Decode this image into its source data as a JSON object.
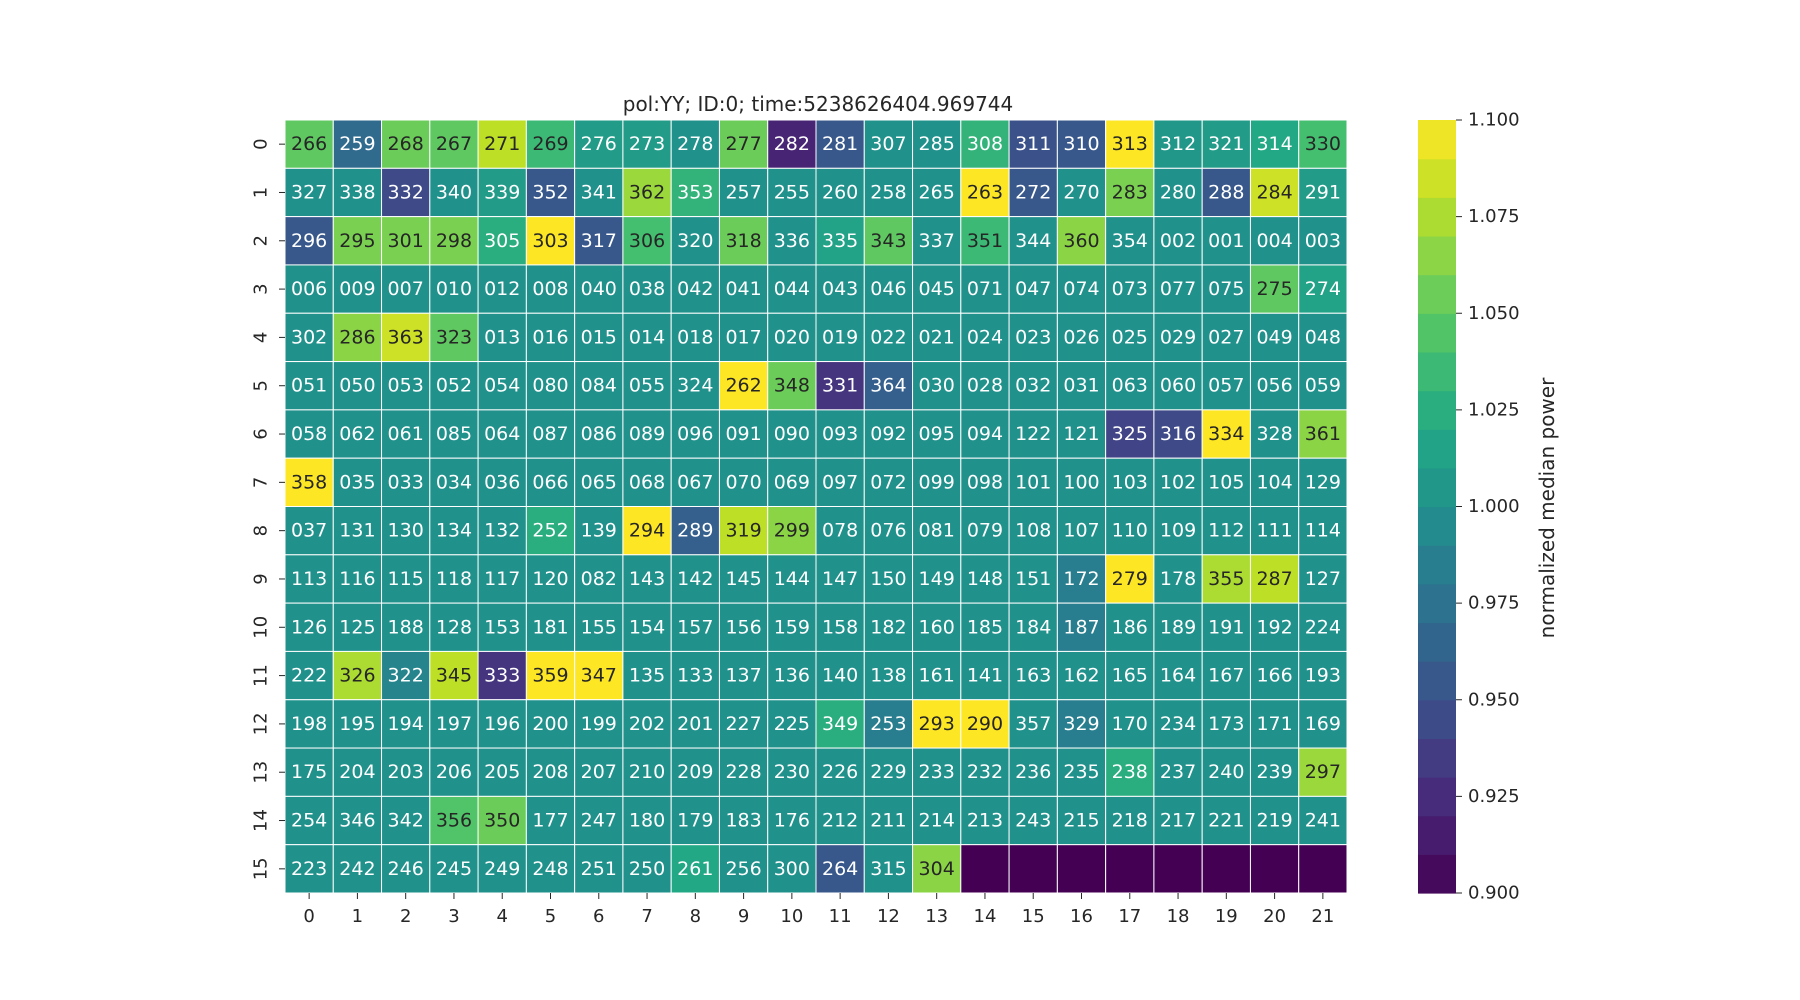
{
  "chart_data": {
    "type": "heatmap",
    "title": "pol:YY; ID:0; time:5238626404.969744",
    "x_categories": [
      "0",
      "1",
      "2",
      "3",
      "4",
      "5",
      "6",
      "7",
      "8",
      "9",
      "10",
      "11",
      "12",
      "13",
      "14",
      "15",
      "16",
      "17",
      "18",
      "19",
      "20",
      "21"
    ],
    "y_categories": [
      "0",
      "1",
      "2",
      "3",
      "4",
      "5",
      "6",
      "7",
      "8",
      "9",
      "10",
      "11",
      "12",
      "13",
      "14",
      "15"
    ],
    "annotations": [
      [
        "266",
        "259",
        "268",
        "267",
        "271",
        "269",
        "276",
        "273",
        "278",
        "277",
        "282",
        "281",
        "307",
        "285",
        "308",
        "311",
        "310",
        "313",
        "312",
        "321",
        "314",
        "330"
      ],
      [
        "327",
        "338",
        "332",
        "340",
        "339",
        "352",
        "341",
        "362",
        "353",
        "257",
        "255",
        "260",
        "258",
        "265",
        "263",
        "272",
        "270",
        "283",
        "280",
        "288",
        "284",
        "291"
      ],
      [
        "296",
        "295",
        "301",
        "298",
        "305",
        "303",
        "317",
        "306",
        "320",
        "318",
        "336",
        "335",
        "343",
        "337",
        "351",
        "344",
        "360",
        "354",
        "002",
        "001",
        "004",
        "003"
      ],
      [
        "006",
        "009",
        "007",
        "010",
        "012",
        "008",
        "040",
        "038",
        "042",
        "041",
        "044",
        "043",
        "046",
        "045",
        "071",
        "047",
        "074",
        "073",
        "077",
        "075",
        "275",
        "274"
      ],
      [
        "302",
        "286",
        "363",
        "323",
        "013",
        "016",
        "015",
        "014",
        "018",
        "017",
        "020",
        "019",
        "022",
        "021",
        "024",
        "023",
        "026",
        "025",
        "029",
        "027",
        "049",
        "048"
      ],
      [
        "051",
        "050",
        "053",
        "052",
        "054",
        "080",
        "084",
        "055",
        "324",
        "262",
        "348",
        "331",
        "364",
        "030",
        "028",
        "032",
        "031",
        "063",
        "060",
        "057",
        "056",
        "059"
      ],
      [
        "058",
        "062",
        "061",
        "085",
        "064",
        "087",
        "086",
        "089",
        "096",
        "091",
        "090",
        "093",
        "092",
        "095",
        "094",
        "122",
        "121",
        "325",
        "316",
        "334",
        "328",
        "361"
      ],
      [
        "358",
        "035",
        "033",
        "034",
        "036",
        "066",
        "065",
        "068",
        "067",
        "070",
        "069",
        "097",
        "072",
        "099",
        "098",
        "101",
        "100",
        "103",
        "102",
        "105",
        "104",
        "129"
      ],
      [
        "037",
        "131",
        "130",
        "134",
        "132",
        "252",
        "139",
        "294",
        "289",
        "319",
        "299",
        "078",
        "076",
        "081",
        "079",
        "108",
        "107",
        "110",
        "109",
        "112",
        "111",
        "114"
      ],
      [
        "113",
        "116",
        "115",
        "118",
        "117",
        "120",
        "082",
        "143",
        "142",
        "145",
        "144",
        "147",
        "150",
        "149",
        "148",
        "151",
        "172",
        "279",
        "178",
        "355",
        "287",
        "127"
      ],
      [
        "126",
        "125",
        "188",
        "128",
        "153",
        "181",
        "155",
        "154",
        "157",
        "156",
        "159",
        "158",
        "182",
        "160",
        "185",
        "184",
        "187",
        "186",
        "189",
        "191",
        "192",
        "224"
      ],
      [
        "222",
        "326",
        "322",
        "345",
        "333",
        "359",
        "347",
        "135",
        "133",
        "137",
        "136",
        "140",
        "138",
        "161",
        "141",
        "163",
        "162",
        "165",
        "164",
        "167",
        "166",
        "193"
      ],
      [
        "198",
        "195",
        "194",
        "197",
        "196",
        "200",
        "199",
        "202",
        "201",
        "227",
        "225",
        "349",
        "253",
        "293",
        "290",
        "357",
        "329",
        "170",
        "234",
        "173",
        "171",
        "169"
      ],
      [
        "175",
        "204",
        "203",
        "206",
        "205",
        "208",
        "207",
        "210",
        "209",
        "228",
        "230",
        "226",
        "229",
        "233",
        "232",
        "236",
        "235",
        "238",
        "237",
        "240",
        "239",
        "297"
      ],
      [
        "254",
        "346",
        "342",
        "356",
        "350",
        "177",
        "247",
        "180",
        "179",
        "183",
        "176",
        "212",
        "211",
        "214",
        "213",
        "243",
        "215",
        "218",
        "217",
        "221",
        "219",
        "241"
      ],
      [
        "223",
        "242",
        "246",
        "245",
        "249",
        "248",
        "251",
        "250",
        "261",
        "256",
        "300",
        "264",
        "315",
        "304",
        "",
        "",
        "",
        "",
        "",
        "",
        "",
        ""
      ]
    ],
    "values": [
      [
        1.05,
        0.97,
        1.055,
        1.05,
        1.08,
        1.035,
        1.01,
        1.01,
        1.0,
        1.055,
        0.92,
        0.955,
        1.0,
        1.0,
        1.03,
        0.95,
        0.955,
        1.1,
        1.005,
        1.01,
        1.02,
        1.04
      ],
      [
        1.0,
        1.0,
        0.945,
        1.0,
        1.01,
        0.955,
        1.0,
        1.07,
        1.03,
        1.0,
        1.0,
        1.0,
        1.0,
        1.0,
        1.1,
        0.955,
        1.0,
        1.06,
        1.0,
        0.955,
        1.085,
        1.01
      ],
      [
        0.955,
        1.06,
        1.06,
        1.06,
        1.025,
        1.1,
        0.955,
        1.04,
        1.0,
        1.055,
        1.0,
        1.015,
        1.05,
        1.0,
        1.035,
        1.0,
        1.065,
        1.0,
        1.0,
        1.0,
        1.0,
        1.0
      ],
      [
        1.0,
        1.0,
        1.0,
        1.0,
        1.0,
        1.0,
        1.0,
        1.0,
        1.0,
        1.0,
        1.0,
        1.0,
        1.0,
        1.0,
        1.0,
        1.0,
        1.0,
        1.0,
        1.0,
        1.0,
        1.05,
        1.015
      ],
      [
        1.0,
        1.065,
        1.085,
        1.05,
        1.0,
        1.0,
        1.0,
        1.0,
        1.0,
        1.0,
        1.0,
        1.0,
        1.0,
        1.0,
        1.0,
        1.0,
        1.0,
        1.0,
        1.0,
        1.0,
        1.0,
        1.0
      ],
      [
        1.0,
        1.0,
        1.0,
        1.0,
        1.0,
        1.0,
        1.0,
        1.0,
        1.0,
        1.1,
        1.055,
        0.93,
        0.96,
        1.0,
        1.0,
        1.0,
        1.0,
        1.0,
        1.0,
        1.0,
        1.0,
        1.0
      ],
      [
        1.0,
        1.0,
        1.0,
        1.0,
        1.0,
        1.0,
        1.0,
        1.0,
        1.0,
        1.0,
        1.0,
        1.0,
        1.0,
        1.0,
        1.0,
        1.0,
        1.0,
        0.94,
        0.945,
        1.1,
        1.0,
        1.065
      ],
      [
        1.1,
        1.0,
        1.0,
        1.0,
        1.0,
        1.0,
        1.0,
        1.0,
        1.0,
        1.0,
        1.0,
        1.0,
        1.0,
        1.0,
        1.0,
        1.0,
        1.0,
        1.0,
        1.0,
        1.0,
        1.0,
        1.0
      ],
      [
        1.0,
        1.0,
        1.0,
        1.0,
        1.0,
        1.025,
        1.0,
        1.1,
        0.96,
        1.08,
        1.065,
        1.0,
        1.0,
        1.0,
        1.0,
        1.0,
        1.0,
        1.0,
        1.0,
        1.0,
        1.0,
        1.0
      ],
      [
        1.0,
        1.0,
        1.0,
        1.0,
        1.0,
        1.0,
        1.0,
        1.0,
        1.0,
        1.0,
        1.0,
        1.0,
        1.0,
        1.0,
        1.0,
        1.0,
        0.985,
        1.1,
        1.0,
        1.075,
        1.08,
        1.0
      ],
      [
        1.0,
        1.0,
        1.0,
        1.0,
        1.0,
        1.0,
        1.0,
        1.0,
        1.0,
        1.0,
        1.0,
        1.0,
        1.0,
        1.0,
        1.0,
        1.0,
        0.985,
        1.0,
        1.0,
        1.0,
        1.0,
        1.0
      ],
      [
        1.0,
        1.075,
        0.99,
        1.08,
        0.93,
        1.1,
        1.1,
        1.0,
        1.0,
        1.0,
        1.0,
        1.0,
        1.0,
        1.0,
        1.0,
        1.0,
        1.0,
        1.0,
        1.0,
        1.0,
        1.0,
        1.0
      ],
      [
        1.0,
        1.0,
        1.0,
        1.0,
        1.0,
        1.0,
        1.0,
        1.0,
        1.0,
        1.0,
        1.0,
        1.025,
        0.985,
        1.1,
        1.1,
        1.0,
        0.985,
        1.0,
        1.0,
        1.0,
        1.0,
        1.0
      ],
      [
        1.0,
        1.0,
        1.0,
        1.0,
        1.0,
        1.0,
        1.0,
        1.0,
        1.0,
        1.0,
        1.0,
        1.0,
        1.0,
        1.0,
        1.0,
        1.0,
        1.0,
        1.025,
        1.0,
        1.0,
        1.0,
        1.07
      ],
      [
        1.0,
        1.0,
        1.0,
        1.045,
        1.055,
        1.0,
        1.0,
        1.0,
        1.0,
        1.0,
        1.0,
        1.0,
        1.0,
        1.0,
        1.0,
        1.0,
        1.0,
        1.0,
        1.0,
        1.0,
        1.0,
        1.0
      ],
      [
        1.0,
        1.0,
        1.0,
        1.0,
        1.0,
        1.0,
        1.0,
        1.0,
        1.02,
        1.0,
        1.0,
        0.955,
        1.0,
        1.065,
        0.9,
        0.9,
        0.9,
        0.9,
        0.9,
        0.9,
        0.9,
        0.9
      ]
    ],
    "colormap": "viridis",
    "vmin": 0.9,
    "vmax": 1.1,
    "colorbar": {
      "label": "normalized median power",
      "ticks": [
        "0.900",
        "0.925",
        "0.950",
        "0.975",
        "1.000",
        "1.025",
        "1.050",
        "1.075",
        "1.100"
      ]
    }
  }
}
